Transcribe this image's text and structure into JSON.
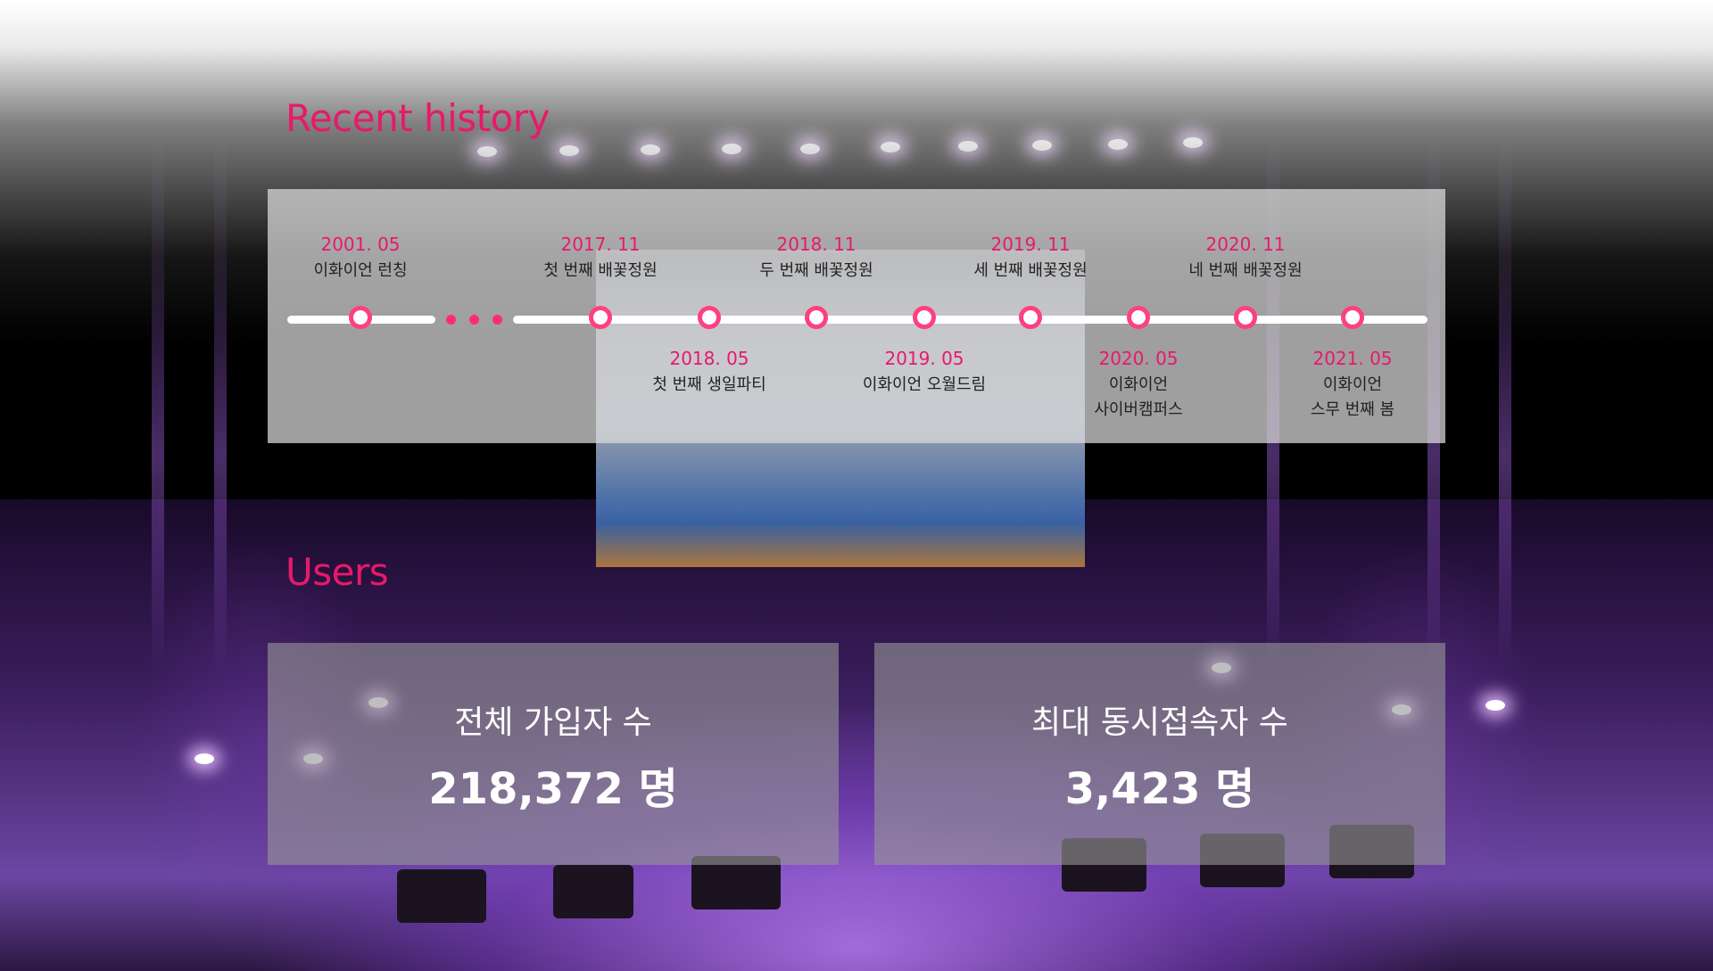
{
  "history": {
    "title": "Recent history",
    "events": [
      {
        "date": "2001. 05",
        "label": "이화이언 런칭",
        "position": "above"
      },
      {
        "date": "2017. 11",
        "label": "첫 번째 배꽃정원",
        "position": "above"
      },
      {
        "date": "2018. 05",
        "label": "첫 번째 생일파티",
        "position": "below"
      },
      {
        "date": "2018. 11",
        "label": "두 번째 배꽃정원",
        "position": "above"
      },
      {
        "date": "2019. 05",
        "label": "이화이언 오월드림",
        "position": "below"
      },
      {
        "date": "2019. 11",
        "label": "세 번째 배꽃정원",
        "position": "above"
      },
      {
        "date": "2020. 05",
        "label": "이화이언\n사이버캠퍼스",
        "position": "below"
      },
      {
        "date": "2020. 11",
        "label": "네 번째 배꽃정원",
        "position": "above"
      },
      {
        "date": "2021. 05",
        "label": "이화이언\n스무 번째 봄",
        "position": "below"
      }
    ]
  },
  "users": {
    "title": "Users",
    "total": {
      "label": "전체 가입자 수",
      "value": "218,372 명"
    },
    "peak": {
      "label": "최대 동시접속자 수",
      "value": "3,423 명"
    }
  },
  "colors": {
    "accent": "#e8196a",
    "marker": "#ff4080"
  }
}
